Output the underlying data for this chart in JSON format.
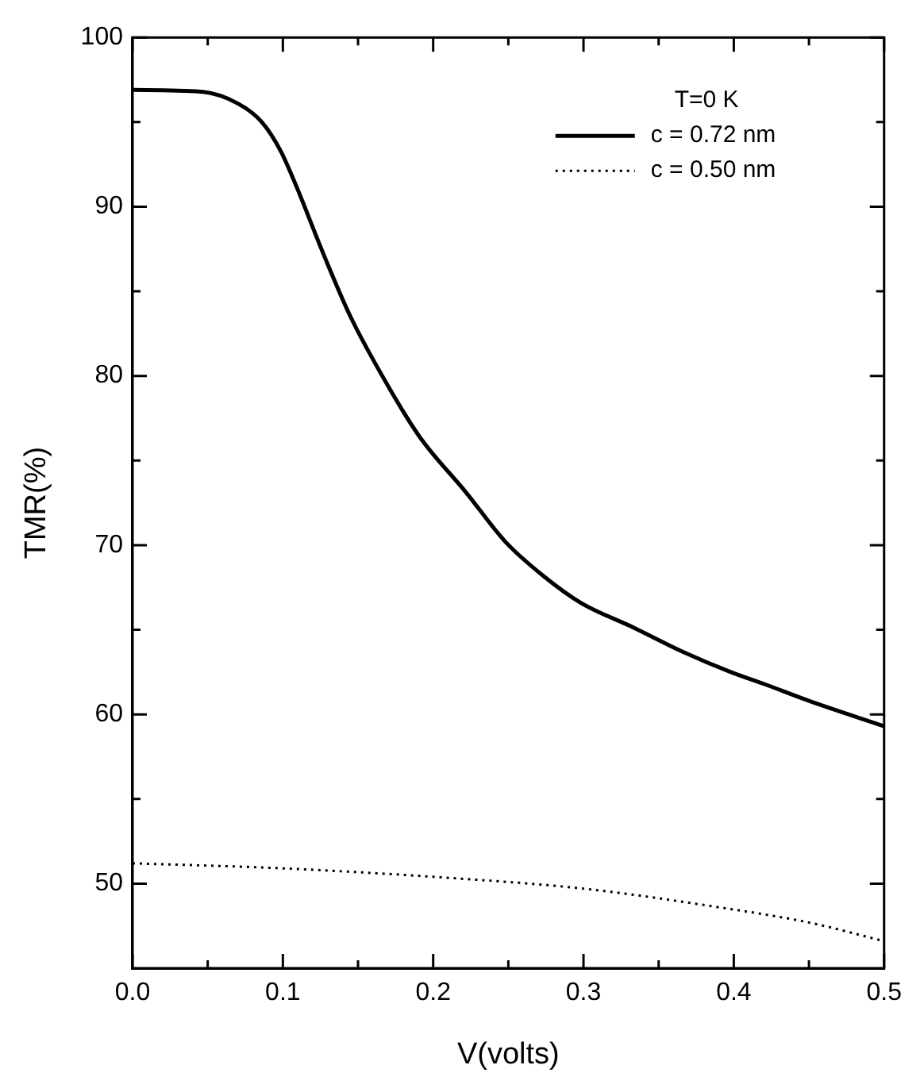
{
  "chart_data": {
    "type": "line",
    "xlabel": "V(volts)",
    "ylabel": "TMR(%)",
    "legend_title": "T=0 K",
    "legend": "top right",
    "grid": false,
    "marker": "none",
    "xlim": [
      0,
      0.5
    ],
    "ylim": [
      45,
      100
    ],
    "xticks": [
      {
        "value": 0,
        "label": "0.0"
      },
      {
        "value": 0.05,
        "label": null
      },
      0.1,
      {
        "value": 0.15,
        "label": null
      },
      0.2,
      {
        "value": 0.25,
        "label": null
      },
      0.3,
      {
        "value": 0.35,
        "label": null
      },
      0.4,
      {
        "value": 0.45,
        "label": null
      },
      0.5
    ],
    "yticks": [
      50,
      {
        "value": 55,
        "label": null
      },
      60,
      {
        "value": 65,
        "label": null
      },
      70,
      {
        "value": 75,
        "label": null
      },
      80,
      {
        "value": 85,
        "label": null
      },
      90,
      {
        "value": 95,
        "label": null
      },
      100
    ],
    "series": [
      {
        "name": "c = 0.72 nm",
        "color": "#000000",
        "line_style": "solid",
        "x": [
          0,
          0.045,
          0.07,
          0.086,
          0.0985,
          0.109,
          0.127,
          0.145,
          0.17,
          0.191,
          0.222,
          0.248,
          0.273,
          0.298,
          0.334,
          0.366,
          0.398,
          0.42,
          0.45,
          0.5
        ],
        "values": [
          96.9,
          96.8,
          96.1,
          95.0,
          93.3,
          91.2,
          87.2,
          83.5,
          79.4,
          76.4,
          73.1,
          70.2,
          68.2,
          66.6,
          65.1,
          63.7,
          62.5,
          61.8,
          60.8,
          59.3
        ]
      },
      {
        "name": "c = 0.50 nm",
        "color": "#000000",
        "line_style": "dotted",
        "x": [
          0,
          0.1,
          0.2,
          0.3,
          0.39,
          0.45,
          0.5
        ],
        "values": [
          51.2,
          50.9,
          50.4,
          49.7,
          48.6,
          47.7,
          46.6
        ]
      }
    ]
  }
}
